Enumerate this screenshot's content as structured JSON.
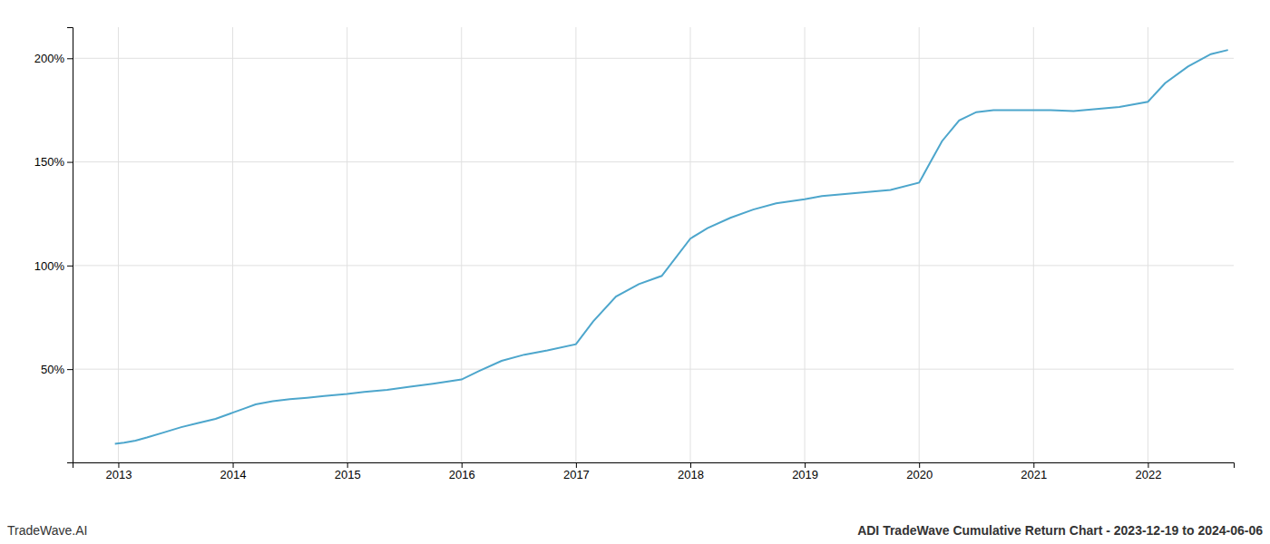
{
  "chart_data": {
    "type": "line",
    "title": "ADI TradeWave Cumulative Return Chart - 2023-12-19 to 2024-06-06",
    "annotations": [
      "TradeWave.AI"
    ],
    "x": [
      2012.97,
      2013.05,
      2013.15,
      2013.25,
      2013.4,
      2013.55,
      2013.7,
      2013.85,
      2014.0,
      2014.1,
      2014.2,
      2014.35,
      2014.5,
      2014.65,
      2014.8,
      2015.0,
      2015.15,
      2015.35,
      2015.55,
      2015.75,
      2016.0,
      2016.15,
      2016.35,
      2016.55,
      2016.75,
      2017.0,
      2017.15,
      2017.35,
      2017.55,
      2017.75,
      2018.0,
      2018.15,
      2018.35,
      2018.55,
      2018.75,
      2019.0,
      2019.15,
      2019.35,
      2019.55,
      2019.75,
      2020.0,
      2020.1,
      2020.2,
      2020.35,
      2020.5,
      2020.65,
      2021.0,
      2021.15,
      2021.35,
      2021.55,
      2021.75,
      2022.0,
      2022.15,
      2022.35,
      2022.55,
      2022.7
    ],
    "values": [
      14,
      14.5,
      15.5,
      17,
      19.5,
      22,
      24,
      26,
      29,
      31,
      33,
      34.5,
      35.5,
      36.2,
      37,
      38,
      39,
      40,
      41.5,
      43,
      45,
      49,
      54,
      57,
      59,
      62,
      73,
      85,
      91,
      95,
      113,
      118,
      123,
      127,
      130,
      132,
      133.5,
      134.5,
      135.5,
      136.5,
      140,
      150,
      160,
      170,
      174,
      175,
      175,
      175,
      174.5,
      175.5,
      176.5,
      179,
      188,
      196,
      202,
      204
    ],
    "color": "#4da6cc",
    "xlim": [
      2012.6,
      2022.75
    ],
    "xticks": [
      2013,
      2014,
      2015,
      2016,
      2017,
      2018,
      2019,
      2020,
      2021,
      2022
    ],
    "ylim": [
      5,
      215
    ],
    "yticks": [
      {
        "value": 50,
        "label": "50%"
      },
      {
        "value": 100,
        "label": "100%"
      },
      {
        "value": 150,
        "label": "150%"
      },
      {
        "value": 200,
        "label": "200%"
      }
    ],
    "grid": true
  }
}
